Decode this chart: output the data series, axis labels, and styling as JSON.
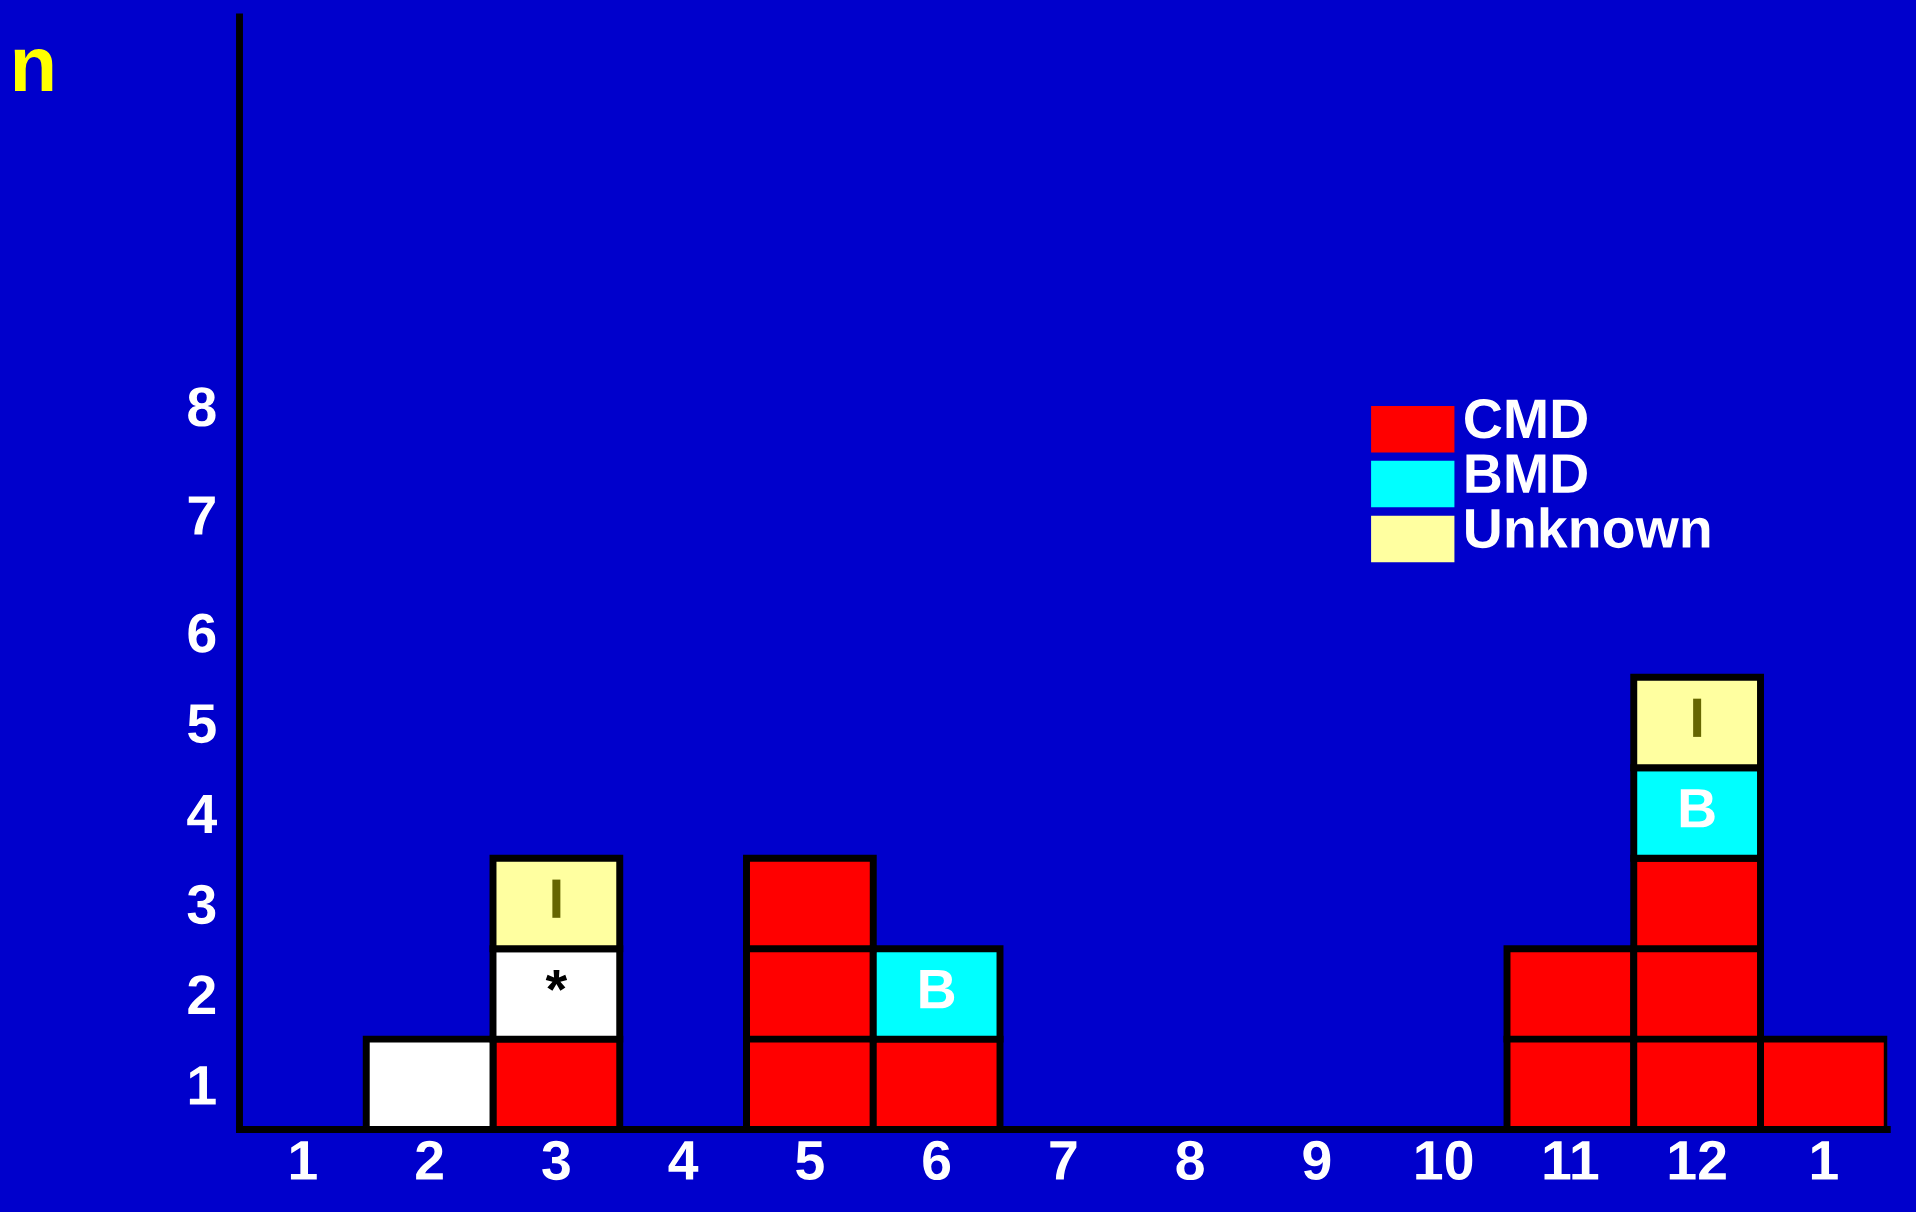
{
  "chart_data": {
    "type": "bar",
    "stacked": true,
    "ylabel": "n",
    "categories": [
      "1",
      "2",
      "3",
      "4",
      "5",
      "6",
      "7",
      "8",
      "9",
      "10",
      "11",
      "12",
      "1"
    ],
    "series": [
      {
        "name": "CMD",
        "color": "#ff0000",
        "values": [
          null,
          null,
          1,
          null,
          3,
          1,
          null,
          null,
          null,
          null,
          2,
          3,
          1
        ]
      },
      {
        "color": "#ffffff",
        "values": [
          null,
          1,
          1,
          null,
          null,
          null,
          null,
          null,
          null,
          null,
          null,
          null,
          null
        ],
        "value_labels": [
          null,
          null,
          "*",
          null,
          null,
          null,
          null,
          null,
          null,
          null,
          null,
          null,
          null
        ]
      },
      {
        "name": "BMD",
        "color": "#00ffff",
        "values": [
          null,
          null,
          null,
          null,
          null,
          1,
          null,
          null,
          null,
          null,
          null,
          1,
          null
        ],
        "value_labels": [
          null,
          null,
          null,
          null,
          null,
          "B",
          null,
          null,
          null,
          null,
          null,
          "B",
          null
        ]
      },
      {
        "name": "Unknown",
        "color": "#ffffa0",
        "values": [
          null,
          null,
          1,
          null,
          null,
          null,
          null,
          null,
          null,
          null,
          null,
          1,
          null
        ],
        "value_labels": [
          null,
          null,
          "I",
          null,
          null,
          null,
          null,
          null,
          null,
          null,
          null,
          "I",
          null
        ]
      }
    ],
    "ylim": [
      0,
      12.3
    ],
    "yticks": [
      {
        "value": 0.5,
        "label": "1"
      },
      {
        "value": 1.5,
        "label": "2"
      },
      {
        "value": 2.5,
        "label": "3"
      },
      {
        "value": 3.5,
        "label": "4"
      },
      {
        "value": 4.5,
        "label": "5"
      },
      {
        "value": 5.5,
        "label": "6"
      },
      {
        "value": 6.8,
        "label": "7"
      },
      {
        "value": 8.0,
        "label": "8"
      }
    ],
    "legend": "top right"
  }
}
